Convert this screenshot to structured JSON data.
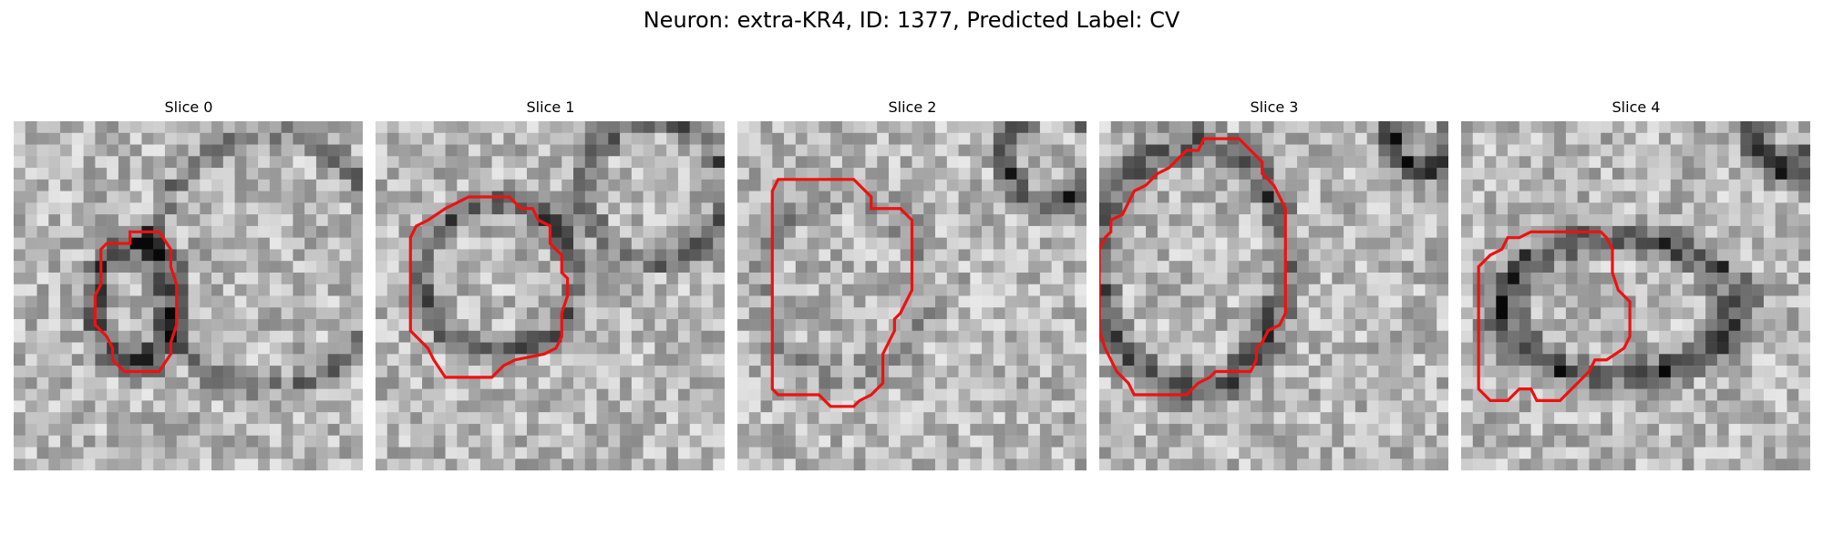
{
  "figure": {
    "title": "Neuron: extra-KR4, ID: 1377, Predicted Label: CV"
  },
  "panels": [
    {
      "title": "Slice 0",
      "ring": "small-dark",
      "contour": [
        [
          10.0,
          10.5
        ],
        [
          10.0,
          9.5
        ],
        [
          12.5,
          9.5
        ],
        [
          13.5,
          11.0
        ],
        [
          13.5,
          12.5
        ],
        [
          14.0,
          14.0
        ],
        [
          14.0,
          17.5
        ],
        [
          13.5,
          19.0
        ],
        [
          13.5,
          20.0
        ],
        [
          12.5,
          21.5
        ],
        [
          9.5,
          21.5
        ],
        [
          8.5,
          20.5
        ],
        [
          8.5,
          19.5
        ],
        [
          8.0,
          18.5
        ],
        [
          7.5,
          18.0
        ],
        [
          7.0,
          17.5
        ],
        [
          7.0,
          15.0
        ],
        [
          7.5,
          14.0
        ],
        [
          7.5,
          11.0
        ],
        [
          8.0,
          10.5
        ]
      ]
    },
    {
      "title": "Slice 1",
      "ring": "medium",
      "contour": [
        [
          6.0,
          7.5
        ],
        [
          8.0,
          6.5
        ],
        [
          10.0,
          6.5
        ],
        [
          11.5,
          6.5
        ],
        [
          12.0,
          7.0
        ],
        [
          12.5,
          7.5
        ],
        [
          13.5,
          7.5
        ],
        [
          14.0,
          8.5
        ],
        [
          15.0,
          9.0
        ],
        [
          15.0,
          10.5
        ],
        [
          16.0,
          11.5
        ],
        [
          16.0,
          13.0
        ],
        [
          16.5,
          13.5
        ],
        [
          16.5,
          15.0
        ],
        [
          16.0,
          16.5
        ],
        [
          16.0,
          18.5
        ],
        [
          15.5,
          19.5
        ],
        [
          14.5,
          20.0
        ],
        [
          12.0,
          20.5
        ],
        [
          11.0,
          21.0
        ],
        [
          10.0,
          22.0
        ],
        [
          8.5,
          22.0
        ],
        [
          6.0,
          22.0
        ],
        [
          5.0,
          20.5
        ],
        [
          4.5,
          19.5
        ],
        [
          4.0,
          19.0
        ],
        [
          3.0,
          18.0
        ],
        [
          3.0,
          15.0
        ],
        [
          3.0,
          11.5
        ],
        [
          3.0,
          10.0
        ],
        [
          3.5,
          9.0
        ],
        [
          4.5,
          8.5
        ]
      ]
    },
    {
      "title": "Slice 2",
      "ring": "faint",
      "contour": [
        [
          3.5,
          5.0
        ],
        [
          8.0,
          5.0
        ],
        [
          10.0,
          5.0
        ],
        [
          11.0,
          6.0
        ],
        [
          11.5,
          6.5
        ],
        [
          11.5,
          7.5
        ],
        [
          13.5,
          7.5
        ],
        [
          14.0,
          7.5
        ],
        [
          15.0,
          8.5
        ],
        [
          15.0,
          10.0
        ],
        [
          15.0,
          12.0
        ],
        [
          15.0,
          14.5
        ],
        [
          14.5,
          15.5
        ],
        [
          14.0,
          16.5
        ],
        [
          13.5,
          17.0
        ],
        [
          13.5,
          18.0
        ],
        [
          13.0,
          19.0
        ],
        [
          12.5,
          20.0
        ],
        [
          12.5,
          21.5
        ],
        [
          12.5,
          22.5
        ],
        [
          11.5,
          23.5
        ],
        [
          10.5,
          24.0
        ],
        [
          10.0,
          24.5
        ],
        [
          8.0,
          24.5
        ],
        [
          7.5,
          24.0
        ],
        [
          7.0,
          23.5
        ],
        [
          5.0,
          23.5
        ],
        [
          3.5,
          23.5
        ],
        [
          3.0,
          23.0
        ],
        [
          3.0,
          20.0
        ],
        [
          3.0,
          15.0
        ],
        [
          3.0,
          8.0
        ],
        [
          3.0,
          6.0
        ]
      ]
    },
    {
      "title": "Slice 3",
      "ring": "large",
      "contour": [
        [
          9.0,
          1.5
        ],
        [
          11.0,
          1.5
        ],
        [
          12.0,
          1.5
        ],
        [
          13.0,
          2.5
        ],
        [
          14.0,
          3.5
        ],
        [
          14.0,
          4.5
        ],
        [
          15.0,
          5.5
        ],
        [
          15.5,
          6.5
        ],
        [
          16.0,
          7.5
        ],
        [
          16.0,
          12.0
        ],
        [
          16.0,
          16.5
        ],
        [
          15.5,
          17.5
        ],
        [
          14.5,
          18.0
        ],
        [
          14.0,
          19.0
        ],
        [
          13.5,
          19.5
        ],
        [
          13.5,
          20.5
        ],
        [
          13.0,
          21.5
        ],
        [
          11.5,
          21.5
        ],
        [
          10.0,
          21.5
        ],
        [
          9.5,
          22.0
        ],
        [
          8.5,
          22.5
        ],
        [
          8.0,
          23.0
        ],
        [
          7.5,
          23.5
        ],
        [
          6.0,
          23.5
        ],
        [
          4.5,
          23.5
        ],
        [
          3.0,
          23.5
        ],
        [
          2.5,
          22.5
        ],
        [
          2.0,
          22.0
        ],
        [
          1.5,
          21.5
        ],
        [
          1.0,
          20.5
        ],
        [
          0.5,
          19.5
        ],
        [
          0.0,
          18.0
        ],
        [
          0.0,
          15.0
        ],
        [
          0.0,
          11.0
        ],
        [
          0.5,
          10.0
        ],
        [
          1.0,
          9.5
        ],
        [
          1.0,
          8.5
        ],
        [
          2.0,
          8.0
        ],
        [
          2.5,
          7.0
        ],
        [
          3.0,
          6.0
        ],
        [
          4.0,
          5.5
        ],
        [
          5.0,
          4.5
        ],
        [
          6.0,
          4.0
        ],
        [
          7.0,
          3.0
        ],
        [
          7.5,
          2.5
        ],
        [
          8.5,
          2.5
        ]
      ]
    },
    {
      "title": "Slice 4",
      "ring": "oval",
      "contour": [
        [
          7.5,
          9.5
        ],
        [
          10.5,
          9.5
        ],
        [
          12.0,
          9.5
        ],
        [
          12.5,
          10.0
        ],
        [
          13.0,
          11.0
        ],
        [
          13.0,
          13.0
        ],
        [
          13.5,
          14.5
        ],
        [
          14.0,
          15.0
        ],
        [
          14.5,
          15.5
        ],
        [
          14.5,
          17.0
        ],
        [
          14.5,
          18.5
        ],
        [
          14.0,
          19.5
        ],
        [
          12.5,
          20.5
        ],
        [
          11.5,
          20.5
        ],
        [
          11.0,
          21.5
        ],
        [
          10.0,
          22.5
        ],
        [
          9.5,
          23.0
        ],
        [
          9.0,
          23.5
        ],
        [
          8.5,
          24.0
        ],
        [
          6.5,
          24.0
        ],
        [
          6.0,
          23.0
        ],
        [
          5.0,
          23.0
        ],
        [
          4.0,
          24.0
        ],
        [
          2.5,
          24.0
        ],
        [
          1.5,
          23.0
        ],
        [
          1.5,
          18.5
        ],
        [
          1.5,
          14.0
        ],
        [
          1.5,
          12.5
        ],
        [
          2.5,
          11.5
        ],
        [
          3.5,
          11.0
        ],
        [
          4.0,
          10.0
        ],
        [
          5.0,
          10.0
        ],
        [
          6.0,
          9.5
        ]
      ]
    }
  ],
  "colors": {
    "contour": "#ee1111"
  }
}
